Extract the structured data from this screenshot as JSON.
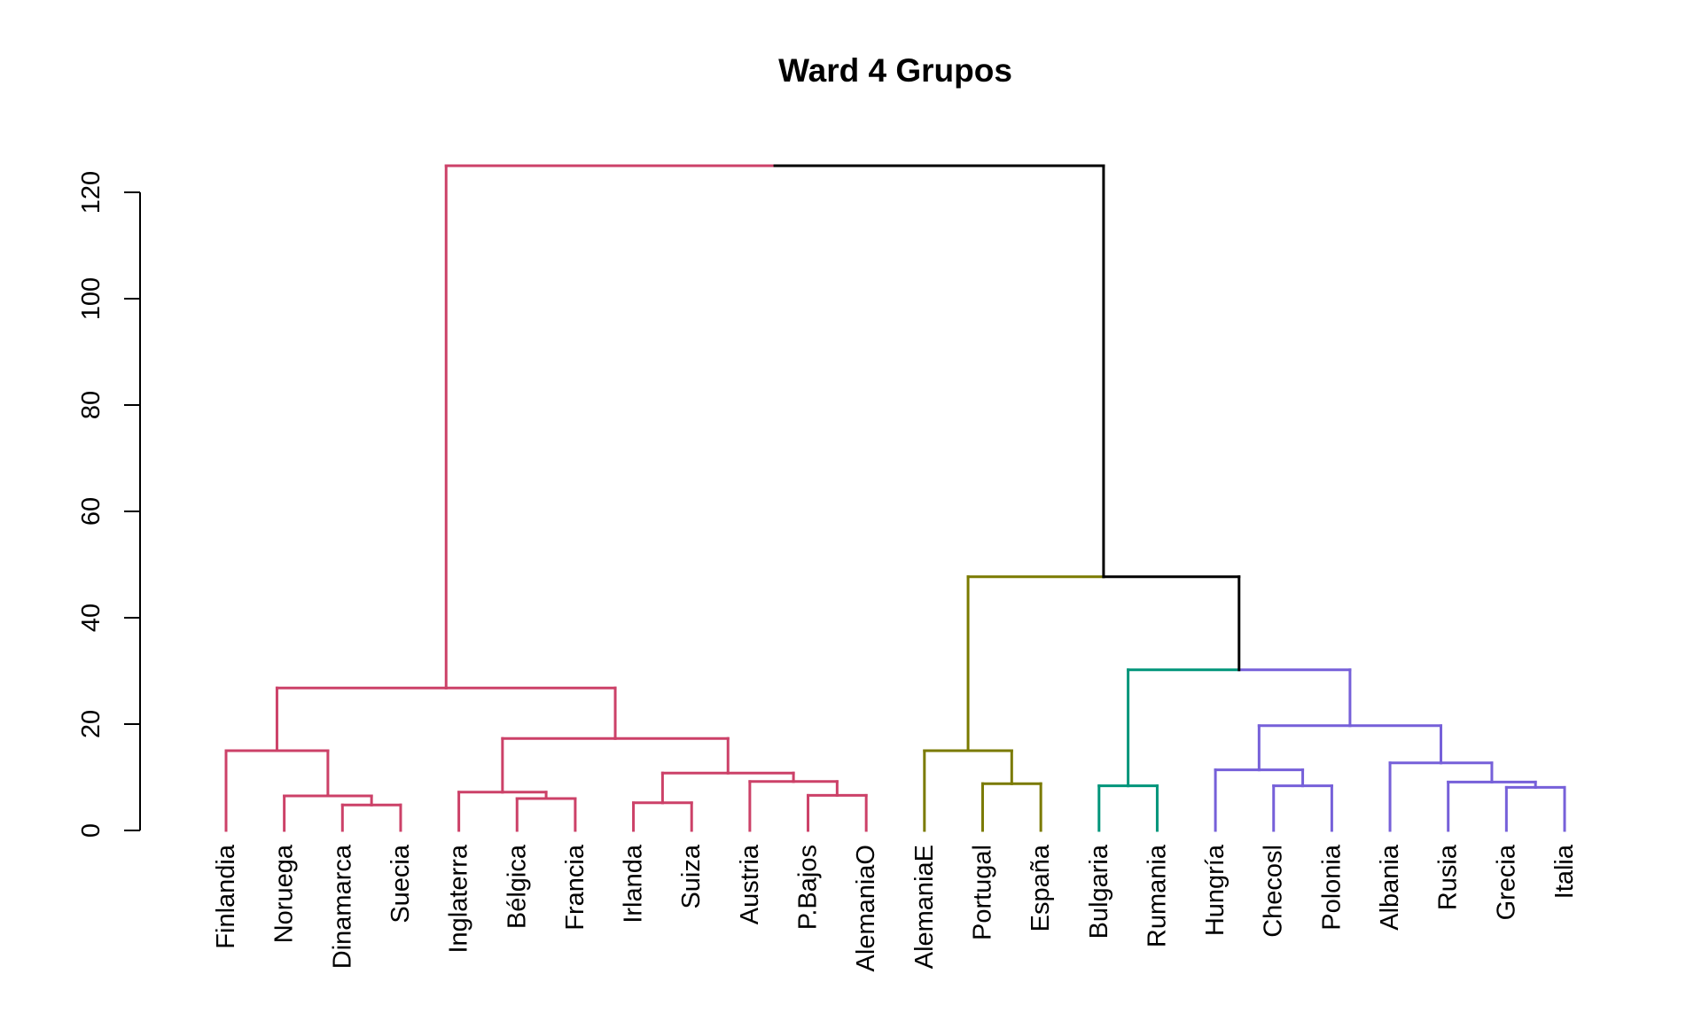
{
  "chart_data": {
    "type": "dendrogram",
    "title": "Ward 4 Grupos",
    "xlabel": "",
    "ylabel": "",
    "ylim": [
      0,
      125
    ],
    "y_ticks": [
      0,
      20,
      40,
      60,
      80,
      100,
      120
    ],
    "leaves": [
      "Finlandia",
      "Noruega",
      "Dinamarca",
      "Suecia",
      "Inglaterra",
      "Bélgica",
      "Francia",
      "Irlanda",
      "Suiza",
      "Austria",
      "P.Bajos",
      "AlemaniaO",
      "AlemaniaE",
      "Portugal",
      "España",
      "Bulgaria",
      "Rumania",
      "Hungría",
      "Checosl",
      "Polonia",
      "Albania",
      "Rusia",
      "Grecia",
      "Italia"
    ],
    "colors": {
      "group1": "#CC4168",
      "group2": "#7A7A00",
      "group3": "#00957A",
      "group4": "#7660D9",
      "root": "#000000"
    },
    "leaf_groups": [
      "group1",
      "group1",
      "group1",
      "group1",
      "group1",
      "group1",
      "group1",
      "group1",
      "group1",
      "group1",
      "group1",
      "group1",
      "group2",
      "group2",
      "group2",
      "group3",
      "group3",
      "group4",
      "group4",
      "group4",
      "group4",
      "group4",
      "group4",
      "group4"
    ],
    "merges": [
      {
        "a": "Dinamarca",
        "b": "Suecia",
        "height": 4.8,
        "group": "group1"
      },
      {
        "a": "Noruega",
        "b": "m1",
        "height": 6.5,
        "group": "group1"
      },
      {
        "a": "Finlandia",
        "b": "m2",
        "height": 15.0,
        "group": "group1"
      },
      {
        "a": "Bélgica",
        "b": "Francia",
        "height": 6.0,
        "group": "group1"
      },
      {
        "a": "Inglaterra",
        "b": "m4",
        "height": 7.2,
        "group": "group1"
      },
      {
        "a": "Irlanda",
        "b": "Suiza",
        "height": 5.2,
        "group": "group1"
      },
      {
        "a": "P.Bajos",
        "b": "AlemaniaO",
        "height": 6.6,
        "group": "group1"
      },
      {
        "a": "Austria",
        "b": "m7",
        "height": 9.2,
        "group": "group1"
      },
      {
        "a": "m6",
        "b": "m8",
        "height": 10.8,
        "group": "group1"
      },
      {
        "a": "m5",
        "b": "m9",
        "height": 17.3,
        "group": "group1"
      },
      {
        "a": "m3",
        "b": "m10",
        "height": 26.8,
        "group": "group1"
      },
      {
        "a": "Portugal",
        "b": "España",
        "height": 8.8,
        "group": "group2"
      },
      {
        "a": "AlemaniaE",
        "b": "m12",
        "height": 15.0,
        "group": "group2"
      },
      {
        "a": "Bulgaria",
        "b": "Rumania",
        "height": 8.4,
        "group": "group3"
      },
      {
        "a": "Checosl",
        "b": "Polonia",
        "height": 8.4,
        "group": "group4"
      },
      {
        "a": "Hungría",
        "b": "m15",
        "height": 11.4,
        "group": "group4"
      },
      {
        "a": "Grecia",
        "b": "Italia",
        "height": 8.1,
        "group": "group4"
      },
      {
        "a": "Rusia",
        "b": "m17",
        "height": 9.1,
        "group": "group4"
      },
      {
        "a": "Albania",
        "b": "m18",
        "height": 12.7,
        "group": "group4"
      },
      {
        "a": "m16",
        "b": "m19",
        "height": 19.7,
        "group": "group4"
      },
      {
        "a": "m14",
        "b": "m20",
        "height": 30.2,
        "group": "mixed34"
      },
      {
        "a": "m13",
        "b": "m21",
        "height": 47.7,
        "group": "mixed2root"
      },
      {
        "a": "m11",
        "b": "m22",
        "height": 125.0,
        "group": "mixed1root"
      }
    ]
  }
}
